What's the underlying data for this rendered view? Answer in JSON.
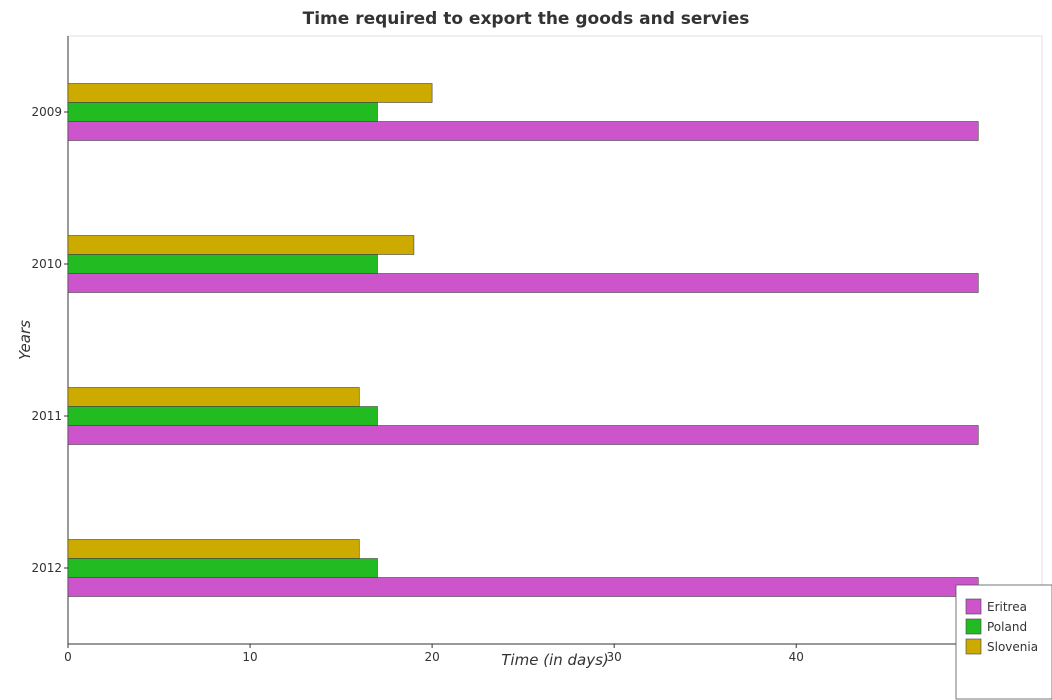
{
  "chart_data": {
    "type": "bar",
    "orientation": "horizontal",
    "title": "Time required to export the goods and servies",
    "xlabel": "Time (in days)",
    "ylabel": "Years",
    "categories": [
      "2009",
      "2010",
      "2011",
      "2012"
    ],
    "series": [
      {
        "name": "Eritrea",
        "color": "#cc55cc",
        "values": [
          50,
          50,
          50,
          50
        ]
      },
      {
        "name": "Poland",
        "color": "#22bb22",
        "values": [
          17,
          17,
          17,
          17
        ]
      },
      {
        "name": "Slovenia",
        "color": "#ccaa00",
        "values": [
          20,
          19,
          16,
          16
        ]
      }
    ],
    "xlim": [
      0,
      53.5
    ],
    "xticks": [
      "0",
      "10",
      "20",
      "30",
      "40",
      "50"
    ],
    "grid": false,
    "legend_position": "bottom-right"
  }
}
